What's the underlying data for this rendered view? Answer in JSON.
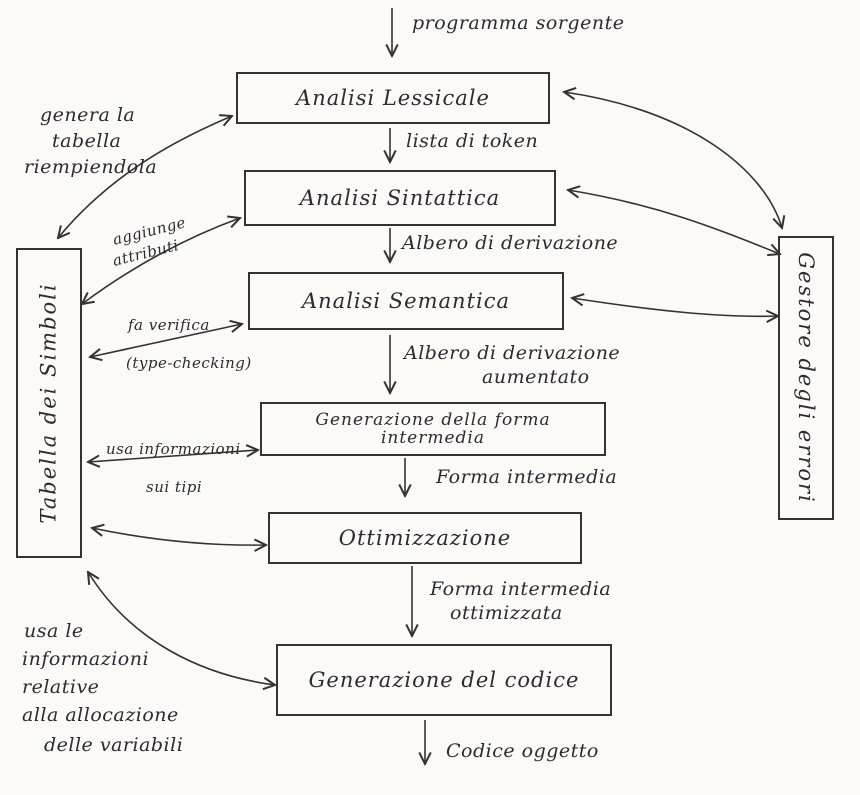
{
  "source_program": "programma sorgente",
  "phases": [
    {
      "label": "Analisi Lessicale"
    },
    {
      "label": "Analisi Sintattica"
    },
    {
      "label": "Analisi Semantica"
    },
    {
      "label_line1": "Generazione della forma",
      "label_line2": "intermedia"
    },
    {
      "label": "Ottimizzazione"
    },
    {
      "label": "Generazione del codice"
    }
  ],
  "flow_labels": {
    "token_list": "lista di token",
    "derivation_tree": "Albero di derivazione",
    "augmented_tree_1": "Albero di derivazione",
    "augmented_tree_2": "aumentato",
    "intermediate_form": "Forma intermedia",
    "optimized_form_1": "Forma intermedia",
    "optimized_form_2": "ottimizzata",
    "object_code": "Codice oggetto"
  },
  "symbol_table": "Tabella dei Simboli",
  "error_handler": "Gestore degli errori",
  "annotations": {
    "generates_1": "genera la",
    "generates_2": "tabella",
    "generates_3": "riempiendola",
    "adds_1": "aggiunge",
    "adds_2": "attributi",
    "checks_1": "fa verifica",
    "checks_2": "(type-checking)",
    "uses_types_1": "usa informazioni",
    "uses_types_2": "sui tipi",
    "alloc_1": "usa le",
    "alloc_2": "informazioni",
    "alloc_3": "relative",
    "alloc_4": "alla allocazione",
    "alloc_5": "delle variabili"
  },
  "colors": {
    "ink": "#2b2b33",
    "paper": "#fbfaf7"
  }
}
